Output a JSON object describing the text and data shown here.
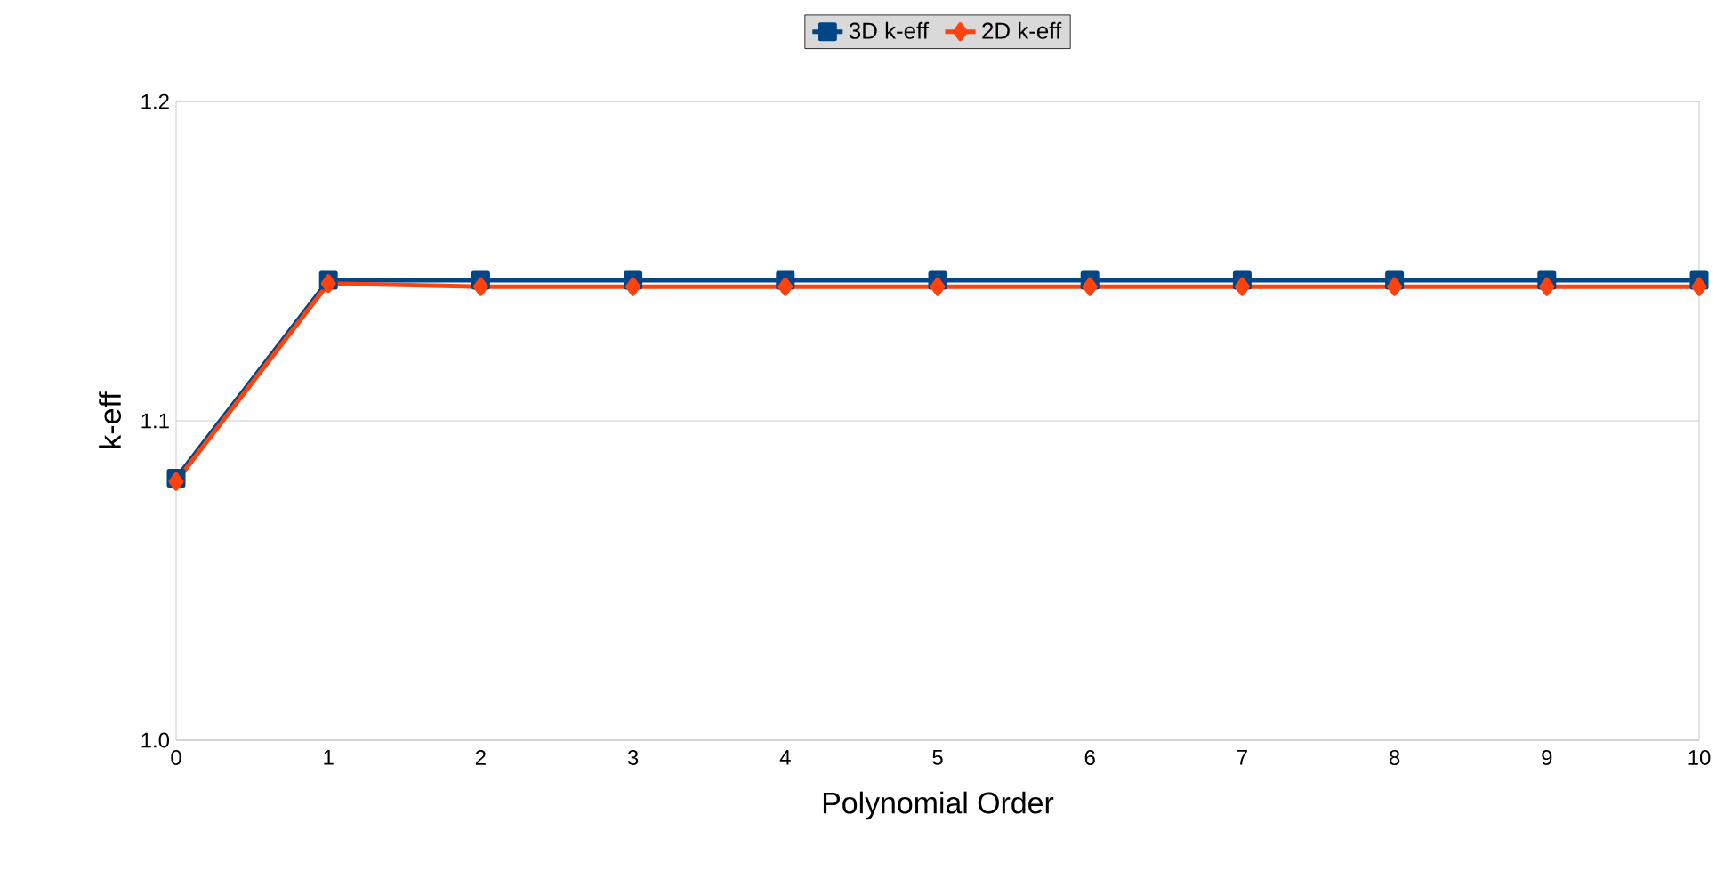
{
  "chart_data": {
    "type": "line",
    "xlabel": "Polynomial Order",
    "ylabel": "k-eff",
    "x": [
      0,
      1,
      2,
      3,
      4,
      5,
      6,
      7,
      8,
      9,
      10
    ],
    "series": [
      {
        "name": "3D k-eff",
        "color": "#004586",
        "marker": "square",
        "values": [
          1.082,
          1.144,
          1.144,
          1.144,
          1.144,
          1.144,
          1.144,
          1.144,
          1.144,
          1.144,
          1.144
        ]
      },
      {
        "name": "2D k-eff",
        "color": "#ff420e",
        "marker": "diamond",
        "values": [
          1.081,
          1.143,
          1.142,
          1.142,
          1.142,
          1.142,
          1.142,
          1.142,
          1.142,
          1.142,
          1.142
        ]
      }
    ],
    "xlim": [
      0,
      10
    ],
    "xticks": [
      0,
      1,
      2,
      3,
      4,
      5,
      6,
      7,
      8,
      9,
      10
    ],
    "ylim": [
      1.0,
      1.2
    ],
    "yticks": [
      {
        "value": 1.0,
        "label": "1.0"
      },
      1.1,
      1.2
    ],
    "grid": "y",
    "legend": "top",
    "line_style": "solid"
  }
}
